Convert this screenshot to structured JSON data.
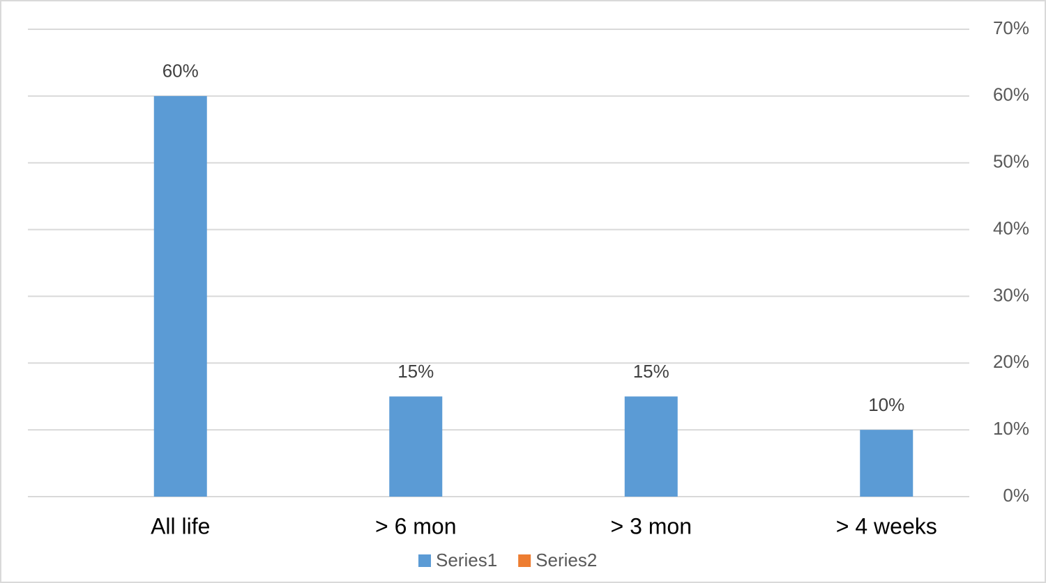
{
  "chart_data": {
    "type": "bar",
    "categories": [
      "All life",
      "> 6 mon",
      "> 3 mon",
      "> 4 weeks"
    ],
    "series": [
      {
        "name": "Series1",
        "color": "#5b9bd5",
        "values": [
          60,
          15,
          15,
          10
        ],
        "value_labels": [
          "60%",
          "15%",
          "15%",
          "10%"
        ]
      },
      {
        "name": "Series2",
        "color": "#ed7d31",
        "values": [
          null,
          null,
          null,
          null
        ]
      }
    ],
    "ylim": [
      0,
      70
    ],
    "yticks": [
      {
        "value": 0,
        "label": "0%"
      },
      {
        "value": 10,
        "label": "10%"
      },
      {
        "value": 20,
        "label": "20%"
      },
      {
        "value": 30,
        "label": "30%"
      },
      {
        "value": 40,
        "label": "40%"
      },
      {
        "value": 50,
        "label": "50%"
      },
      {
        "value": 60,
        "label": "60%"
      },
      {
        "value": 70,
        "label": "70%"
      }
    ],
    "y_axis_side": "right",
    "grid": true,
    "legend": "bottom"
  }
}
